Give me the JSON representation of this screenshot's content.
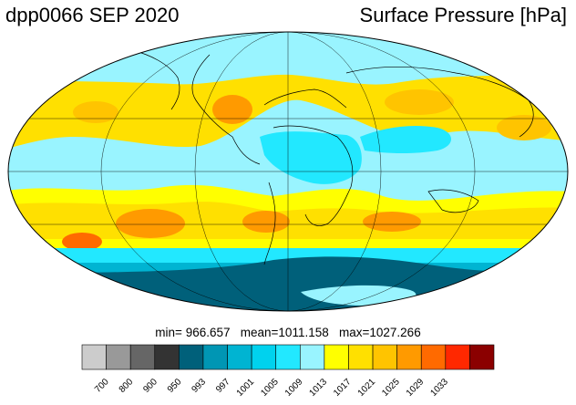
{
  "header": {
    "run_date": "dpp0066 SEP 2020",
    "variable": "Surface Pressure [hPa]"
  },
  "stats": {
    "min_label": "min=",
    "min": "966.657",
    "mean_label": "mean=",
    "mean": "1011.158",
    "max_label": "max=",
    "max": "1027.266"
  },
  "colorbar": {
    "colors": [
      "#cccccc",
      "#999999",
      "#666666",
      "#333333",
      "#00607a",
      "#0096b4",
      "#00b4d2",
      "#00d2ee",
      "#22e8ff",
      "#99f4ff",
      "#ffff00",
      "#ffe000",
      "#ffc400",
      "#ff9a00",
      "#ff6a00",
      "#ff2800",
      "#8b0000"
    ],
    "ticks": [
      "700",
      "800",
      "900",
      "950",
      "993",
      "997",
      "1001",
      "1005",
      "1009",
      "1013",
      "1017",
      "1021",
      "1025",
      "1029",
      "1033"
    ]
  },
  "map": {
    "projection": "mollweide",
    "colors": {
      "ocean_equatorial": "#99f4ff",
      "subtropical_high": "#ffe000",
      "high_core": "#ff9a00",
      "high_peak": "#ff6a00",
      "southern_trough": "#22e8ff",
      "antarctic_low": "#00607a",
      "antarctic_low_dark": "#00506a",
      "land_low": "#00d2ee"
    }
  }
}
